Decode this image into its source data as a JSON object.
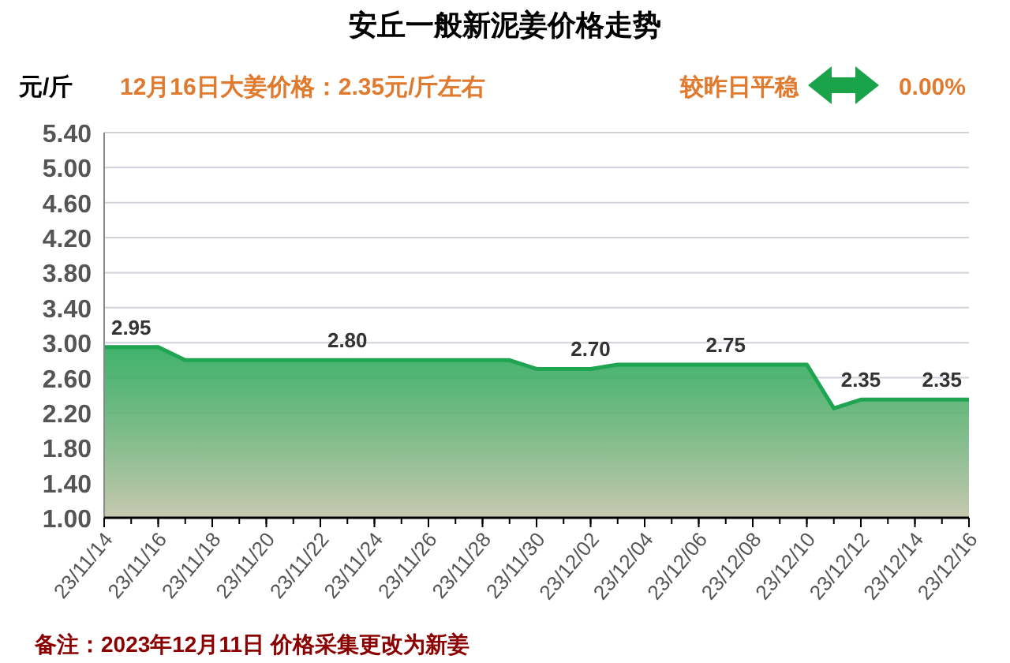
{
  "chart_data": {
    "type": "area",
    "title": "安丘一般新泥姜价格走势",
    "subtitle": "12月16日大姜价格：2.35元/斤左右",
    "ylabel": "元/斤",
    "annotations": [
      "较昨日平稳",
      "0.00%",
      "备注：2023年12月11日 价格采集更改为新姜"
    ],
    "x": [
      "2023-11-14",
      "2023-11-15",
      "2023-11-16",
      "2023-11-17",
      "2023-11-18",
      "2023-11-19",
      "2023-11-20",
      "2023-11-21",
      "2023-11-22",
      "2023-11-23",
      "2023-11-24",
      "2023-11-25",
      "2023-11-26",
      "2023-11-27",
      "2023-11-28",
      "2023-11-29",
      "2023-11-30",
      "2023-12-01",
      "2023-12-02",
      "2023-12-03",
      "2023-12-04",
      "2023-12-05",
      "2023-12-06",
      "2023-12-07",
      "2023-12-08",
      "2023-12-09",
      "2023-12-10",
      "2023-12-11",
      "2023-12-12",
      "2023-12-13",
      "2023-12-14",
      "2023-12-15",
      "2023-12-16"
    ],
    "series": [
      {
        "color": "#1fa552",
        "values": [
          2.95,
          2.95,
          2.95,
          2.8,
          2.8,
          2.8,
          2.8,
          2.8,
          2.8,
          2.8,
          2.8,
          2.8,
          2.8,
          2.8,
          2.8,
          2.8,
          2.7,
          2.7,
          2.7,
          2.75,
          2.75,
          2.75,
          2.75,
          2.75,
          2.75,
          2.75,
          2.75,
          2.25,
          2.35,
          2.35,
          2.35,
          2.35,
          2.35
        ],
        "value_labels": [
          null,
          "2.95",
          null,
          null,
          null,
          null,
          null,
          null,
          null,
          "2.80",
          null,
          null,
          null,
          null,
          null,
          null,
          null,
          null,
          "2.70",
          null,
          null,
          null,
          null,
          "2.75",
          null,
          null,
          null,
          null,
          "2.35",
          null,
          null,
          "2.35",
          null
        ]
      }
    ],
    "xlim": [
      "2023-11-14",
      "2023-12-16"
    ],
    "xticks": [
      {
        "value": "2023-11-14",
        "label": "23/11/14"
      },
      {
        "value": "2023-11-16",
        "label": "23/11/16"
      },
      {
        "value": "2023-11-18",
        "label": "23/11/18"
      },
      {
        "value": "2023-11-20",
        "label": "23/11/20"
      },
      {
        "value": "2023-11-22",
        "label": "23/11/22"
      },
      {
        "value": "2023-11-24",
        "label": "23/11/24"
      },
      {
        "value": "2023-11-26",
        "label": "23/11/26"
      },
      {
        "value": "2023-11-28",
        "label": "23/11/28"
      },
      {
        "value": "2023-11-30",
        "label": "23/11/30"
      },
      {
        "value": "2023-12-02",
        "label": "23/12/02"
      },
      {
        "value": "2023-12-04",
        "label": "23/12/04"
      },
      {
        "value": "2023-12-06",
        "label": "23/12/06"
      },
      {
        "value": "2023-12-08",
        "label": "23/12/08"
      },
      {
        "value": "2023-12-10",
        "label": "23/12/10"
      },
      {
        "value": "2023-12-12",
        "label": "23/12/12"
      },
      {
        "value": "2023-12-14",
        "label": "23/12/14"
      },
      {
        "value": "2023-12-16",
        "label": "23/12/16"
      }
    ],
    "ylim": [
      1.0,
      5.4
    ],
    "yticks": [
      {
        "value": 1.0,
        "label": "1.00"
      },
      {
        "value": 1.4,
        "label": "1.40"
      },
      {
        "value": 1.8,
        "label": "1.80"
      },
      {
        "value": 2.2,
        "label": "2.20"
      },
      {
        "value": 2.6,
        "label": "2.60"
      },
      {
        "value": 3.0,
        "label": "3.00"
      },
      {
        "value": 3.4,
        "label": "3.40"
      },
      {
        "value": 3.8,
        "label": "3.80"
      },
      {
        "value": 4.2,
        "label": "4.20"
      },
      {
        "value": 4.6,
        "label": "4.60"
      },
      {
        "value": 5.0,
        "label": "5.00"
      },
      {
        "value": 5.4,
        "label": "5.40"
      }
    ],
    "grid": "y"
  }
}
